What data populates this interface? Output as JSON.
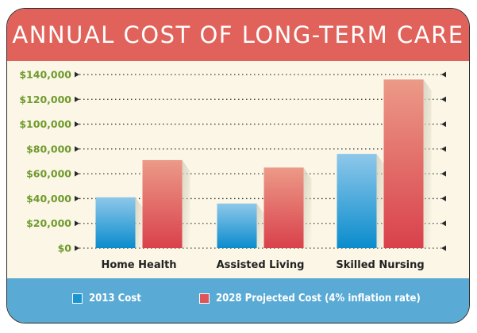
{
  "chart_data": {
    "type": "bar",
    "title": "ANNUAL COST OF LONG-TERM CARE",
    "categories": [
      "Home Health",
      "Assisted Living",
      "Skilled Nursing"
    ],
    "series": [
      {
        "name": "2013 Cost",
        "values": [
          41000,
          36000,
          76000
        ]
      },
      {
        "name": "2028 Projected Cost (4% inflation rate)",
        "values": [
          71000,
          65000,
          136000
        ]
      }
    ],
    "yticks": [
      "$0",
      "$20,000",
      "$40,000",
      "$60,000",
      "$80,000",
      "$100,000",
      "$120,000",
      "$140,000"
    ],
    "ylim": [
      0,
      140000
    ],
    "xlabel": "",
    "ylabel": "",
    "grid": true,
    "legend_position": "bottom"
  },
  "colors": {
    "header": "#e0625a",
    "footer": "#5aaad6",
    "background": "#fbf6e6",
    "series_2013": "#1b95d2",
    "series_2028": "#e05358",
    "tick_text": "#6f9a2c"
  }
}
